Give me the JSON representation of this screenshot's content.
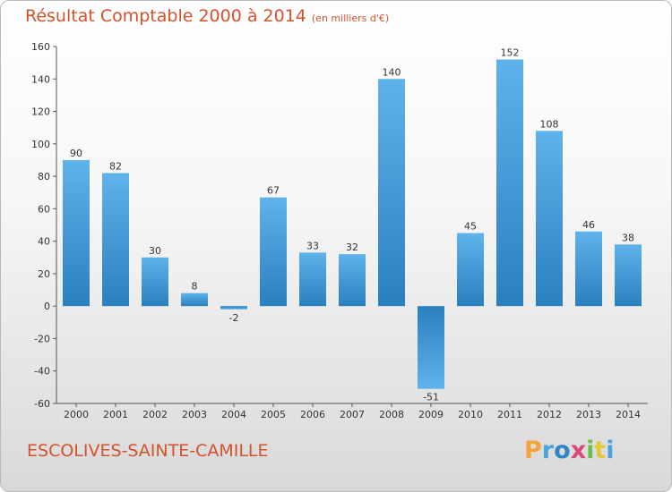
{
  "header": {
    "title": "Résultat Comptable 2000 à 2014",
    "unit": "(en milliers d'€)"
  },
  "commune": "ESCOLIVES-SAINTE-CAMILLE",
  "logo": {
    "text": "Proxiti",
    "letters": [
      "P",
      "r",
      "o",
      "x",
      "i",
      "t",
      "i"
    ],
    "colors": [
      "#f2a33a",
      "#4aa3df",
      "#2e86c9",
      "#d94a7a",
      "#6cbf4a",
      "#e3c83a",
      "#4aa3df"
    ]
  },
  "chart_data": {
    "type": "bar",
    "categories": [
      "2000",
      "2001",
      "2002",
      "2003",
      "2004",
      "2005",
      "2006",
      "2007",
      "2008",
      "2009",
      "2010",
      "2011",
      "2012",
      "2013",
      "2014"
    ],
    "values": [
      90,
      82,
      30,
      8,
      -2,
      67,
      33,
      32,
      140,
      -51,
      45,
      152,
      108,
      46,
      38
    ],
    "ylim": [
      -60,
      160
    ],
    "yticks": [
      -60,
      -40,
      -20,
      0,
      20,
      40,
      60,
      80,
      100,
      120,
      140,
      160
    ],
    "grid": false,
    "bar_color_light": "#5fb3ea",
    "bar_color_dark": "#2a7fbf"
  }
}
